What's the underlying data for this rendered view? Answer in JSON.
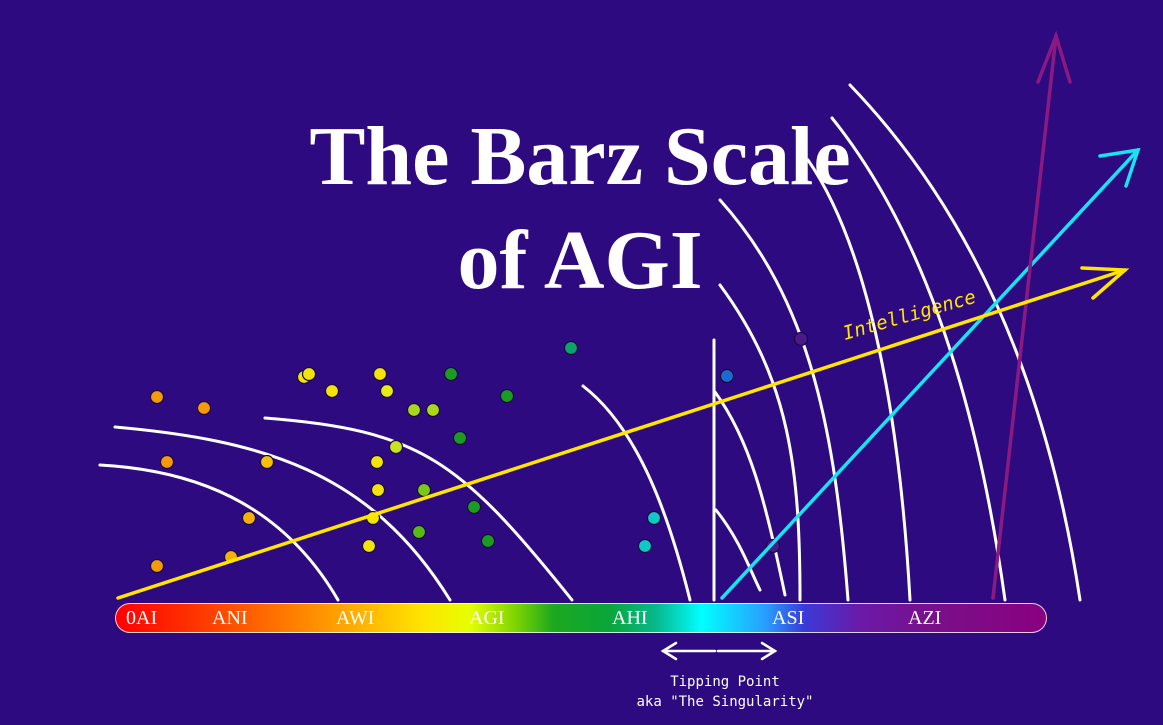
{
  "title": {
    "line1": "The Barz Scale",
    "line2": "of AGI"
  },
  "scale": {
    "labels": [
      "0AI",
      "ANI",
      "AWI",
      "AGI",
      "AHI",
      "ASI",
      "AZI"
    ]
  },
  "intelligence_label": "Intelligence",
  "tipping_point": {
    "line1": "Tipping Point",
    "line2": "aka \"The Singularity\""
  },
  "colors": {
    "background": "#2e0a80",
    "intelligence_arrow": "#ffe500",
    "asi_arrow": "#19e3f0",
    "azi_arrow": "#8a1a80",
    "curves": "#ffffff"
  },
  "dots": {
    "orange": "#f59a0a",
    "yellow": "#f2e40a",
    "lime": "#a7d81a",
    "green": "#1a9c22",
    "teal": "#0ea36a",
    "cyan": "#10c8c8",
    "blue": "#1c6cd0",
    "purple": "#4a1a8a"
  }
}
